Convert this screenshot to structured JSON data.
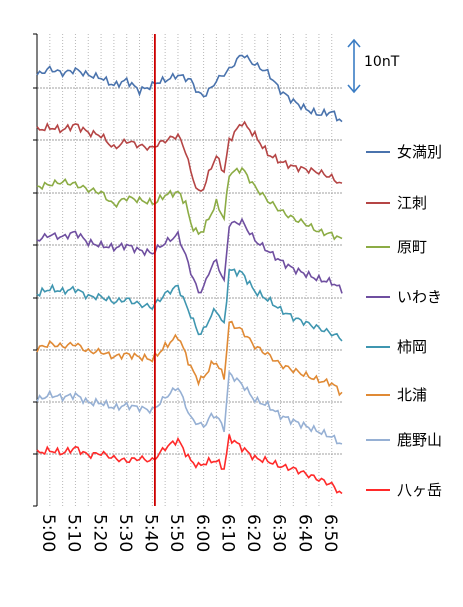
{
  "chart_data": {
    "type": "line",
    "x_ticks": [
      "5:00",
      "5:10",
      "5:20",
      "5:30",
      "5:40",
      "5:50",
      "6:00",
      "6:10",
      "6:20",
      "6:30",
      "6:40",
      "6:50"
    ],
    "xlim": [
      "5:00",
      "6:59"
    ],
    "event_time": "5:46",
    "event_line_color": "#cc0000",
    "scale_bar": {
      "label": "10nT",
      "nT": 10,
      "color": "#3b7dc4"
    },
    "grid": {
      "x": "dotted",
      "y": "dotted"
    },
    "legend_position": "right",
    "series": [
      {
        "name": "女満別",
        "color": "#4a73ad",
        "times": [
          0,
          5,
          10,
          15,
          20,
          25,
          30,
          35,
          40,
          45,
          46,
          50,
          55,
          60,
          63,
          65,
          68,
          70,
          75,
          80,
          85,
          90,
          95,
          100,
          105,
          110,
          115,
          119
        ],
        "values": [
          0.0,
          1.2,
          0.3,
          1.0,
          0.0,
          -0.5,
          -2.0,
          -1.0,
          -3.0,
          -2.0,
          -1.5,
          -1.0,
          0.0,
          -1.0,
          -3.5,
          -4.0,
          -2.5,
          -1.0,
          1.0,
          4.0,
          2.0,
          0.5,
          -3.0,
          -5.0,
          -6.5,
          -7.5,
          -7.0,
          -9.0
        ]
      },
      {
        "name": "江刺",
        "color": "#b54545",
        "times": [
          0,
          5,
          10,
          15,
          20,
          25,
          30,
          35,
          40,
          45,
          46,
          50,
          55,
          58,
          60,
          63,
          65,
          68,
          70,
          73,
          75,
          80,
          85,
          90,
          95,
          100,
          105,
          110,
          115,
          119
        ],
        "values": [
          0.0,
          0.5,
          0.0,
          1.0,
          -0.5,
          -1.0,
          -3.5,
          -2.0,
          -3.0,
          -3.5,
          -3.0,
          -2.0,
          -1.0,
          -4.0,
          -8.0,
          -12.0,
          -11.0,
          -7.0,
          -5.0,
          -8.0,
          -2.0,
          1.5,
          -1.0,
          -4.5,
          -6.0,
          -7.0,
          -7.5,
          -8.0,
          -9.0,
          -10.5
        ]
      },
      {
        "name": "原町",
        "color": "#8cac45",
        "times": [
          0,
          5,
          10,
          15,
          20,
          25,
          30,
          35,
          40,
          45,
          46,
          50,
          55,
          58,
          60,
          63,
          65,
          68,
          70,
          73,
          75,
          80,
          85,
          90,
          95,
          100,
          105,
          110,
          115,
          119
        ],
        "values": [
          0.0,
          0.5,
          1.0,
          0.5,
          -0.5,
          -1.0,
          -3.5,
          -2.0,
          -2.5,
          -3.0,
          -3.0,
          -1.5,
          -1.0,
          -3.0,
          -7.0,
          -9.0,
          -8.0,
          -5.0,
          -3.0,
          -6.0,
          2.5,
          3.5,
          0.0,
          -2.5,
          -4.5,
          -6.0,
          -7.0,
          -8.5,
          -9.0,
          -10.0
        ]
      },
      {
        "name": "いわき",
        "color": "#6f4fa0",
        "times": [
          0,
          5,
          10,
          15,
          20,
          25,
          30,
          35,
          40,
          45,
          46,
          50,
          55,
          58,
          60,
          63,
          65,
          68,
          70,
          73,
          75,
          80,
          85,
          90,
          95,
          100,
          105,
          110,
          115,
          119
        ],
        "values": [
          0.0,
          1.0,
          0.5,
          1.5,
          -0.5,
          -1.0,
          -1.5,
          -1.0,
          -2.0,
          -2.5,
          -2.0,
          -0.5,
          1.0,
          -3.0,
          -6.0,
          -10.0,
          -9.0,
          -5.0,
          -4.0,
          -8.0,
          3.0,
          3.5,
          0.0,
          -2.0,
          -4.0,
          -5.5,
          -6.5,
          -7.5,
          -8.0,
          -9.5
        ]
      },
      {
        "name": "柿岡",
        "color": "#3f96b0",
        "times": [
          0,
          5,
          10,
          15,
          20,
          25,
          30,
          35,
          40,
          45,
          46,
          50,
          55,
          58,
          60,
          63,
          65,
          68,
          70,
          73,
          75,
          80,
          85,
          90,
          95,
          100,
          105,
          110,
          115,
          119
        ],
        "values": [
          0.0,
          1.0,
          0.5,
          1.0,
          -0.5,
          -0.5,
          -1.5,
          -1.0,
          -2.0,
          -2.5,
          -2.0,
          0.0,
          1.5,
          -2.0,
          -4.0,
          -7.5,
          -7.0,
          -4.0,
          -3.0,
          -6.0,
          4.5,
          4.0,
          0.5,
          -1.0,
          -3.0,
          -4.5,
          -5.5,
          -6.5,
          -7.5,
          -8.5
        ]
      },
      {
        "name": "北浦",
        "color": "#e08a35",
        "times": [
          0,
          5,
          10,
          15,
          20,
          25,
          30,
          35,
          40,
          45,
          46,
          50,
          55,
          58,
          60,
          63,
          65,
          68,
          70,
          73,
          75,
          80,
          85,
          90,
          95,
          100,
          105,
          110,
          115,
          119
        ],
        "values": [
          0.0,
          1.0,
          0.5,
          1.0,
          -0.5,
          -0.5,
          -1.5,
          -1.0,
          -1.5,
          -2.0,
          -1.5,
          0.5,
          2.5,
          -1.0,
          -3.5,
          -6.0,
          -5.5,
          -3.0,
          -2.5,
          -5.5,
          5.0,
          3.5,
          0.5,
          -1.0,
          -3.0,
          -4.0,
          -5.0,
          -6.0,
          -6.5,
          -8.5
        ]
      },
      {
        "name": "鹿野山",
        "color": "#96b0d4",
        "times": [
          0,
          5,
          10,
          15,
          20,
          25,
          30,
          35,
          40,
          45,
          46,
          50,
          55,
          58,
          60,
          63,
          65,
          68,
          70,
          73,
          75,
          80,
          85,
          90,
          95,
          100,
          105,
          110,
          115,
          119
        ],
        "values": [
          0.0,
          1.0,
          0.5,
          1.0,
          -0.5,
          -0.5,
          -1.5,
          -1.0,
          -1.5,
          -2.0,
          -1.5,
          0.5,
          2.5,
          -1.0,
          -3.5,
          -4.5,
          -5.0,
          -3.0,
          -3.0,
          -5.5,
          5.0,
          3.0,
          0.0,
          -1.0,
          -3.0,
          -4.0,
          -5.0,
          -6.0,
          -7.0,
          -8.5
        ]
      },
      {
        "name": "八ヶ岳",
        "color": "#ff2a2a",
        "times": [
          0,
          5,
          10,
          15,
          20,
          25,
          30,
          35,
          40,
          45,
          46,
          50,
          55,
          58,
          60,
          63,
          65,
          68,
          70,
          73,
          75,
          80,
          85,
          90,
          95,
          100,
          105,
          110,
          115,
          119
        ],
        "values": [
          0.0,
          0.5,
          0.0,
          1.0,
          -0.5,
          0.0,
          -1.0,
          -1.5,
          -1.0,
          -1.5,
          -1.0,
          1.0,
          2.5,
          0.0,
          -1.5,
          -2.5,
          -2.0,
          -1.5,
          -1.5,
          -3.0,
          3.0,
          1.0,
          -1.0,
          -1.5,
          -2.5,
          -3.0,
          -4.0,
          -5.0,
          -6.0,
          -8.0
        ]
      }
    ]
  }
}
